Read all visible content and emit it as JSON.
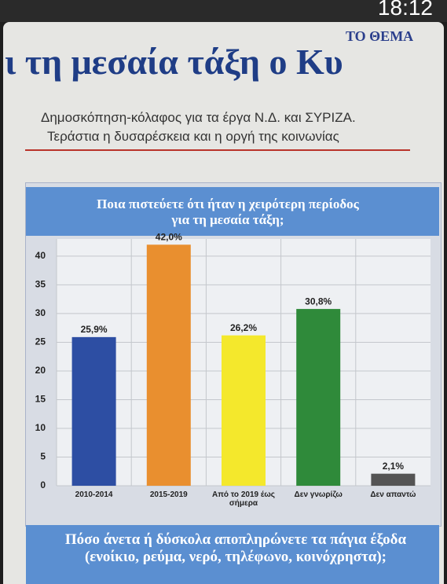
{
  "page": {
    "status_time": "18:12",
    "masthead": "ΤΟ ΘΕΜΑ",
    "headline": "ι τη μεσαία τάξη ο Κυ",
    "subhead_1": "Δημοσκόπηση-κόλαφος για τα έργα Ν.Δ. και ΣΥΡΙΖΑ.",
    "subhead_2": "Τεράστια η δυσαρέσκεια και η οργή της κοινωνίας",
    "next_question": "Πόσο άνετα ή δύσκολα αποπληρώνετε τα πάγια έξοδα (ενοίκιο, ρεύμα, νερό, τηλέφωνο, κοινόχρηστα);"
  },
  "chart_data": {
    "type": "bar",
    "title": "Ποια πιστεύετε ότι ήταν η χειρότερη περίοδος για τη μεσαία τάξη;",
    "categories": [
      "2010-2014",
      "2015-2019",
      "Από το 2019 έως σήμερα",
      "Δεν γνωρίζω",
      "Δεν απαντώ"
    ],
    "values": [
      25.9,
      42.0,
      26.2,
      30.8,
      2.1
    ],
    "value_labels": [
      "25,9%",
      "42,0%",
      "26,2%",
      "30,8%",
      "2,1%"
    ],
    "colors": [
      "#2d4ea3",
      "#e98f2f",
      "#f4e82c",
      "#2f8a3a",
      "#545454"
    ],
    "ylim": [
      0,
      43
    ],
    "yticks": [
      0,
      5,
      10,
      15,
      20,
      25,
      30,
      35,
      40
    ],
    "grid": true
  }
}
